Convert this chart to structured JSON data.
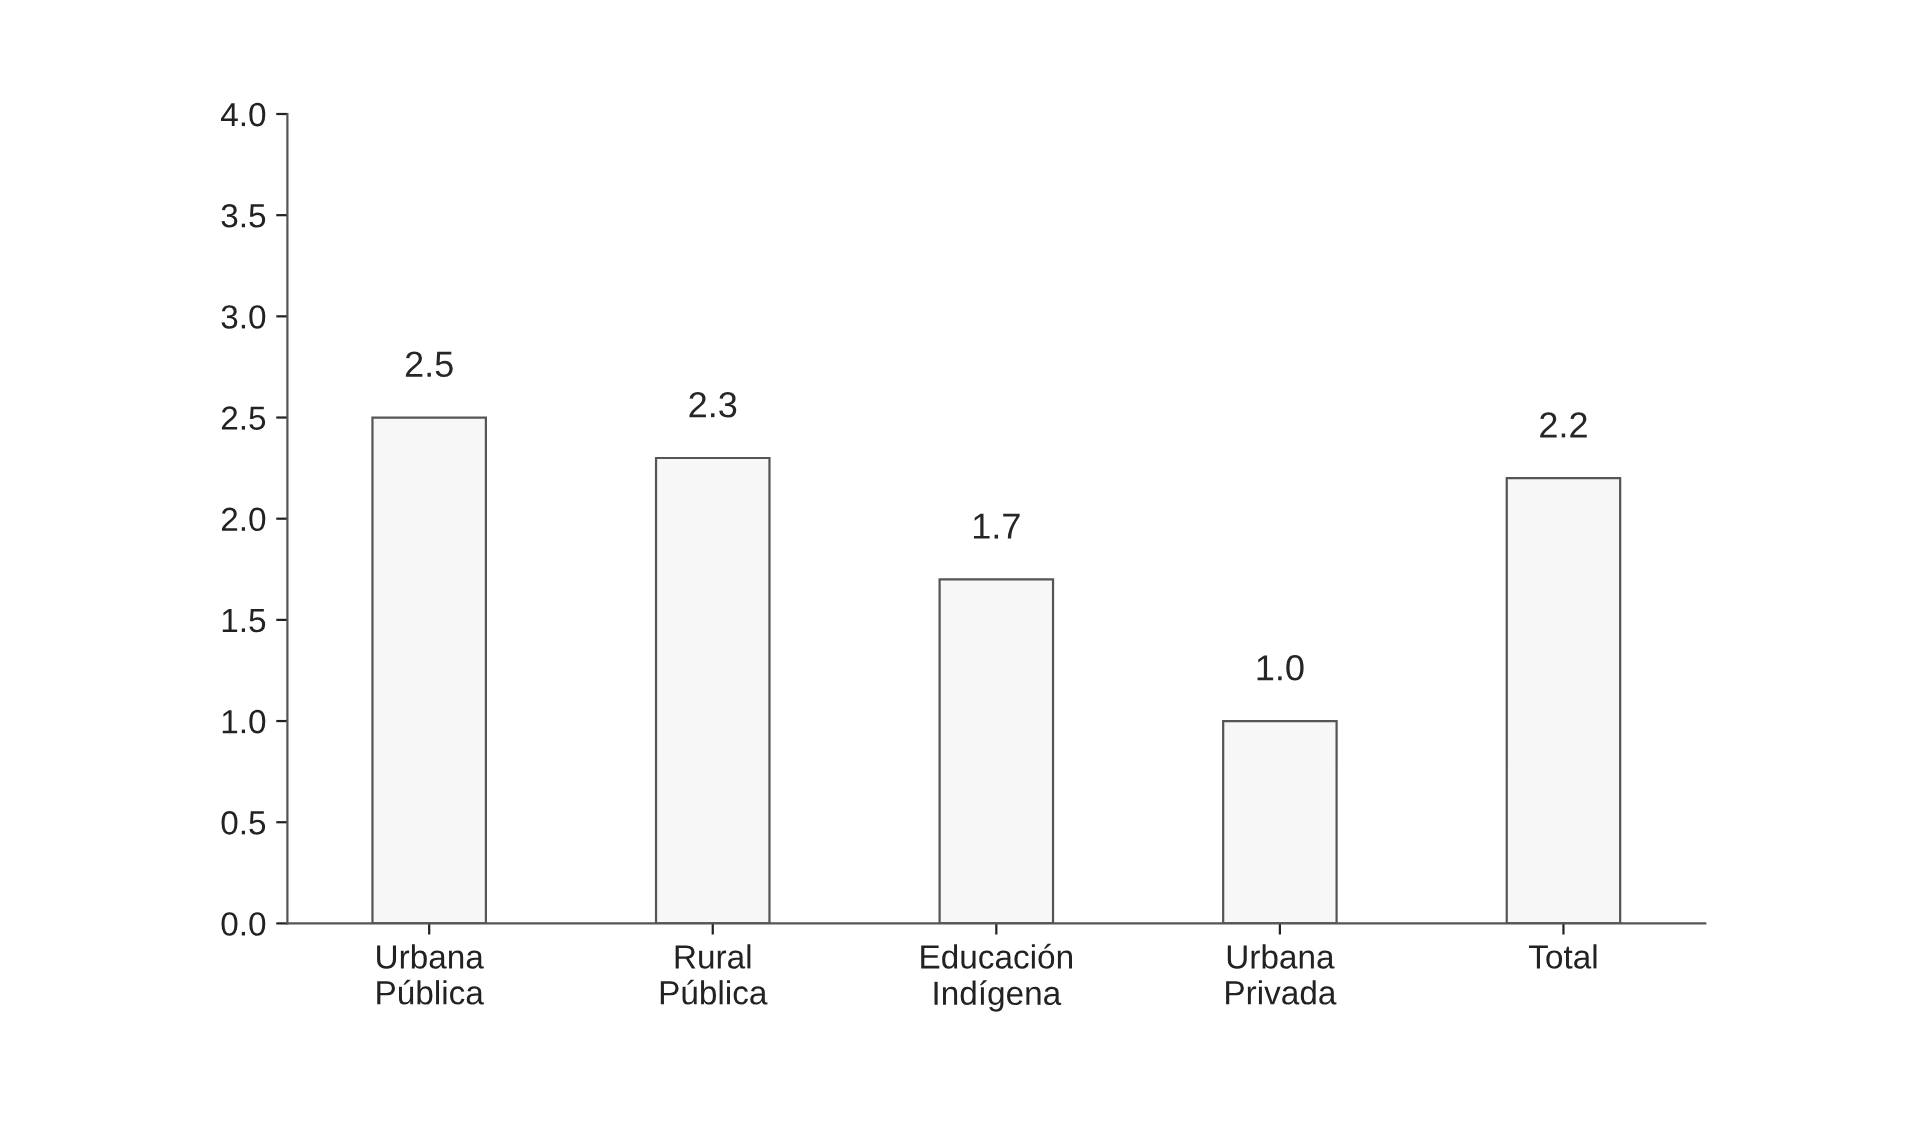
{
  "chart_data": {
    "type": "bar",
    "categories": [
      "Urbana\nPública",
      "Rural\nPública",
      "Educación\nIndígena",
      "Urbana\nPrivada",
      "Total"
    ],
    "values": [
      2.5,
      2.3,
      1.7,
      1.0,
      2.2
    ],
    "color": "#f7f7f7",
    "ylim": [
      0,
      4
    ],
    "yticks": [
      {
        "value": 0,
        "label": "0.0"
      },
      {
        "value": 0.5,
        "label": "0.5"
      },
      {
        "value": 1,
        "label": "1.0"
      },
      {
        "value": 1.5,
        "label": "1.5"
      },
      {
        "value": 2,
        "label": "2.0"
      },
      {
        "value": 2.5,
        "label": "2.5"
      },
      {
        "value": 3,
        "label": "3.0"
      },
      {
        "value": 3.5,
        "label": "3.5"
      },
      {
        "value": 4,
        "label": "4.0"
      }
    ],
    "value_labels": [
      "2.5",
      "2.3",
      "1.7",
      "1.0",
      "2.2"
    ]
  }
}
